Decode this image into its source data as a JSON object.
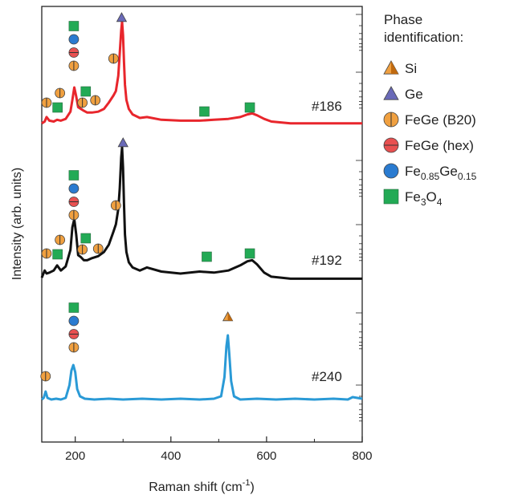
{
  "chart_data": {
    "type": "line",
    "xlabel": "Raman shift (cm",
    "xlabel_sup": "-1",
    "xlabel_end": ")",
    "ylabel": "Intensity (arb. units)",
    "xlim": [
      130,
      800
    ],
    "xticks": [
      200,
      400,
      600,
      800
    ],
    "grid": false,
    "legend_position": "right",
    "legend_title": [
      "Phase",
      "identification:"
    ],
    "phases": [
      {
        "key": "Si",
        "label": "Si",
        "marker": "triangle-half",
        "color": "#f0a040"
      },
      {
        "key": "Ge",
        "label": "Ge",
        "marker": "triangle",
        "color": "#6a6ab8"
      },
      {
        "key": "B20",
        "label": "FeGe (B20)",
        "marker": "circle-vline",
        "color": "#f0a040"
      },
      {
        "key": "hex",
        "label": "FeGe (hex)",
        "marker": "circle-hline",
        "color": "#e85050"
      },
      {
        "key": "FeGe015",
        "label": "Fe",
        "sub1": "0.85",
        "mid": "Ge",
        "sub2": "0.15",
        "marker": "circle",
        "color": "#2a7bd0"
      },
      {
        "key": "Fe3O4",
        "label": "Fe",
        "sub1": "3",
        "mid": "O",
        "sub2": "4",
        "marker": "square",
        "color": "#22aa55"
      }
    ],
    "series": [
      {
        "name": "#186",
        "color": "#e8262c",
        "x": [
          130,
          136,
          140,
          146,
          155,
          162,
          170,
          180,
          190,
          194,
          198,
          202,
          206,
          212,
          218,
          225,
          235,
          248,
          260,
          270,
          280,
          285,
          290,
          293,
          296,
          298,
          300,
          302,
          304,
          307,
          312,
          320,
          335,
          350,
          380,
          420,
          460,
          490,
          520,
          545,
          560,
          570,
          580,
          595,
          610,
          650,
          700,
          750,
          800
        ],
        "y": [
          0.02,
          0.04,
          0.09,
          0.05,
          0.04,
          0.06,
          0.05,
          0.07,
          0.15,
          0.28,
          0.42,
          0.32,
          0.2,
          0.18,
          0.16,
          0.14,
          0.14,
          0.15,
          0.18,
          0.25,
          0.33,
          0.38,
          0.55,
          0.8,
          1.05,
          1.15,
          1.0,
          0.7,
          0.45,
          0.28,
          0.18,
          0.12,
          0.08,
          0.09,
          0.06,
          0.05,
          0.05,
          0.06,
          0.07,
          0.09,
          0.12,
          0.13,
          0.11,
          0.07,
          0.04,
          0.02,
          0.02,
          0.02,
          0.02
        ]
      },
      {
        "name": "#192",
        "color": "#111111",
        "x": [
          130,
          136,
          140,
          146,
          155,
          162,
          170,
          180,
          190,
          194,
          198,
          202,
          206,
          212,
          218,
          225,
          235,
          248,
          260,
          270,
          280,
          285,
          290,
          293,
          296,
          298,
          300,
          302,
          304,
          307,
          312,
          320,
          335,
          350,
          380,
          420,
          460,
          490,
          520,
          545,
          560,
          570,
          580,
          595,
          610,
          650,
          700,
          750,
          800
        ],
        "y": [
          0.03,
          0.1,
          0.07,
          0.08,
          0.1,
          0.15,
          0.1,
          0.14,
          0.3,
          0.52,
          0.6,
          0.45,
          0.25,
          0.23,
          0.2,
          0.2,
          0.22,
          0.24,
          0.28,
          0.35,
          0.48,
          0.55,
          0.7,
          0.9,
          1.2,
          1.3,
          1.1,
          0.75,
          0.45,
          0.28,
          0.18,
          0.13,
          0.1,
          0.13,
          0.09,
          0.07,
          0.09,
          0.08,
          0.1,
          0.15,
          0.19,
          0.2,
          0.16,
          0.08,
          0.04,
          0.02,
          0.02,
          0.02,
          0.02
        ]
      },
      {
        "name": "#240",
        "color": "#2a9ad6",
        "x": [
          130,
          134,
          138,
          142,
          150,
          160,
          170,
          180,
          188,
          192,
          196,
          200,
          204,
          210,
          220,
          240,
          270,
          300,
          340,
          380,
          420,
          460,
          490,
          505,
          512,
          516,
          519,
          522,
          526,
          532,
          545,
          580,
          620,
          660,
          700,
          740,
          770,
          780,
          790,
          800
        ],
        "y": [
          0.02,
          0.04,
          0.12,
          0.04,
          0.02,
          0.03,
          0.02,
          0.04,
          0.2,
          0.38,
          0.45,
          0.36,
          0.15,
          0.06,
          0.03,
          0.02,
          0.03,
          0.02,
          0.03,
          0.02,
          0.03,
          0.02,
          0.03,
          0.06,
          0.3,
          0.68,
          0.82,
          0.6,
          0.25,
          0.06,
          0.02,
          0.03,
          0.02,
          0.03,
          0.02,
          0.03,
          0.02,
          0.05,
          0.04,
          0.03
        ]
      }
    ],
    "markers": [
      {
        "series": "#186",
        "stack": [
          {
            "x": 140,
            "phases": [
              "B20"
            ]
          },
          {
            "x": 163,
            "phases": [
              "Fe3O4"
            ]
          },
          {
            "x": 168,
            "phases": [
              "B20"
            ]
          },
          {
            "x": 197,
            "phases": [
              "B20",
              "hex",
              "FeGe015",
              "Fe3O4"
            ]
          },
          {
            "x": 215,
            "phases": [
              "B20"
            ]
          },
          {
            "x": 222,
            "phases": [
              "Fe3O4"
            ]
          },
          {
            "x": 242,
            "phases": [
              "B20"
            ]
          },
          {
            "x": 280,
            "phases": [
              "B20"
            ]
          },
          {
            "x": 297,
            "phases": [
              "Ge"
            ]
          },
          {
            "x": 470,
            "phases": [
              "Fe3O4"
            ]
          },
          {
            "x": 565,
            "phases": [
              "Fe3O4"
            ]
          }
        ]
      },
      {
        "series": "#192",
        "stack": [
          {
            "x": 140,
            "phases": [
              "B20"
            ]
          },
          {
            "x": 163,
            "phases": [
              "Fe3O4"
            ]
          },
          {
            "x": 168,
            "phases": [
              "B20"
            ]
          },
          {
            "x": 197,
            "phases": [
              "B20",
              "hex",
              "FeGe015",
              "Fe3O4"
            ]
          },
          {
            "x": 215,
            "phases": [
              "B20"
            ]
          },
          {
            "x": 222,
            "phases": [
              "Fe3O4"
            ]
          },
          {
            "x": 248,
            "phases": [
              "B20"
            ]
          },
          {
            "x": 285,
            "phases": [
              "B20"
            ]
          },
          {
            "x": 300,
            "phases": [
              "Ge"
            ]
          },
          {
            "x": 475,
            "phases": [
              "Fe3O4"
            ]
          },
          {
            "x": 565,
            "phases": [
              "Fe3O4"
            ]
          }
        ]
      },
      {
        "series": "#240",
        "stack": [
          {
            "x": 138,
            "phases": [
              "B20"
            ]
          },
          {
            "x": 197,
            "phases": [
              "B20",
              "hex",
              "FeGe015",
              "Fe3O4"
            ]
          },
          {
            "x": 519,
            "phases": [
              "Si"
            ]
          }
        ]
      }
    ]
  }
}
